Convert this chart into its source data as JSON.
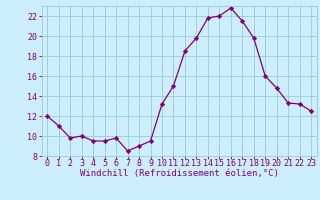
{
  "x": [
    0,
    1,
    2,
    3,
    4,
    5,
    6,
    7,
    8,
    9,
    10,
    11,
    12,
    13,
    14,
    15,
    16,
    17,
    18,
    19,
    20,
    21,
    22,
    23
  ],
  "y": [
    12,
    11,
    9.8,
    10,
    9.5,
    9.5,
    9.8,
    8.5,
    9.0,
    9.5,
    13.2,
    15.0,
    18.5,
    19.8,
    21.8,
    22.0,
    22.8,
    21.5,
    19.8,
    16.0,
    14.8,
    13.3,
    13.2,
    12.5
  ],
  "line_color": "#800080",
  "marker": "D",
  "markersize": 2.2,
  "linewidth": 0.9,
  "background_color": "#cceeff",
  "grid_color": "#99cccc",
  "xlabel": "Windchill (Refroidissement éolien,°C)",
  "xlabel_color": "#800080",
  "xlabel_fontsize": 6.5,
  "tick_color": "#800080",
  "tick_fontsize": 6.0,
  "xlim": [
    -0.5,
    23.5
  ],
  "ylim": [
    8,
    23
  ],
  "yticks": [
    8,
    10,
    12,
    14,
    16,
    18,
    20,
    22
  ],
  "xticks": [
    0,
    1,
    2,
    3,
    4,
    5,
    6,
    7,
    8,
    9,
    10,
    11,
    12,
    13,
    14,
    15,
    16,
    17,
    18,
    19,
    20,
    21,
    22,
    23
  ]
}
